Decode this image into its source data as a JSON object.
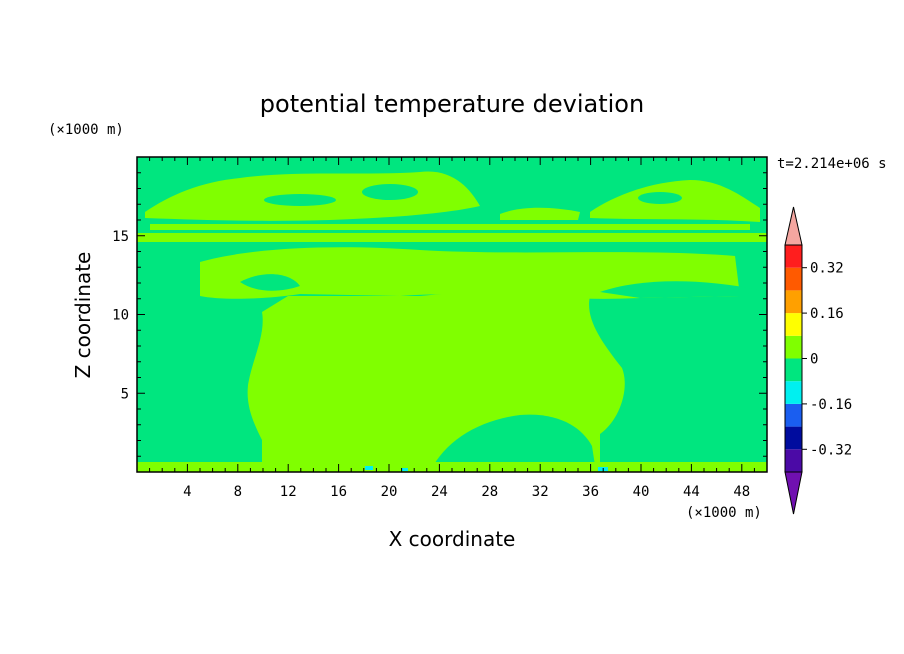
{
  "chart_data": {
    "type": "heatmap",
    "title": "potential temperature deviation",
    "xlabel": "X coordinate",
    "ylabel": "Z coordinate",
    "x_unit": "(×1000 m)",
    "y_unit": "(×1000 m)",
    "time_label": "t=2.214e+06 s",
    "xlim": [
      0,
      50
    ],
    "ylim": [
      0,
      20
    ],
    "x_ticks": [
      4,
      8,
      12,
      16,
      20,
      24,
      28,
      32,
      36,
      40,
      44,
      48
    ],
    "y_ticks": [
      5,
      10,
      15
    ],
    "colorbar": {
      "levels": [
        -0.4,
        -0.32,
        -0.24,
        -0.16,
        -0.08,
        0,
        0.08,
        0.16,
        0.24,
        0.32,
        0.4
      ],
      "labels": [
        "0.32",
        "0.16",
        "0",
        "-0.16",
        "-0.32"
      ],
      "label_values": [
        0.32,
        0.16,
        0,
        -0.16,
        -0.32
      ],
      "colors": [
        "#4b0aa6",
        "#000c9e",
        "#1a5ef0",
        "#00f0f0",
        "#00e67f",
        "#80ff00",
        "#ffff00",
        "#ffa000",
        "#ff5a00",
        "#ff1e1e"
      ],
      "under_color": "#7010b0",
      "over_color": "#f4a6a0"
    },
    "field_colors": {
      "negative_small": "#00e67f",
      "positive_small": "#80ff00"
    },
    "grid": false
  }
}
